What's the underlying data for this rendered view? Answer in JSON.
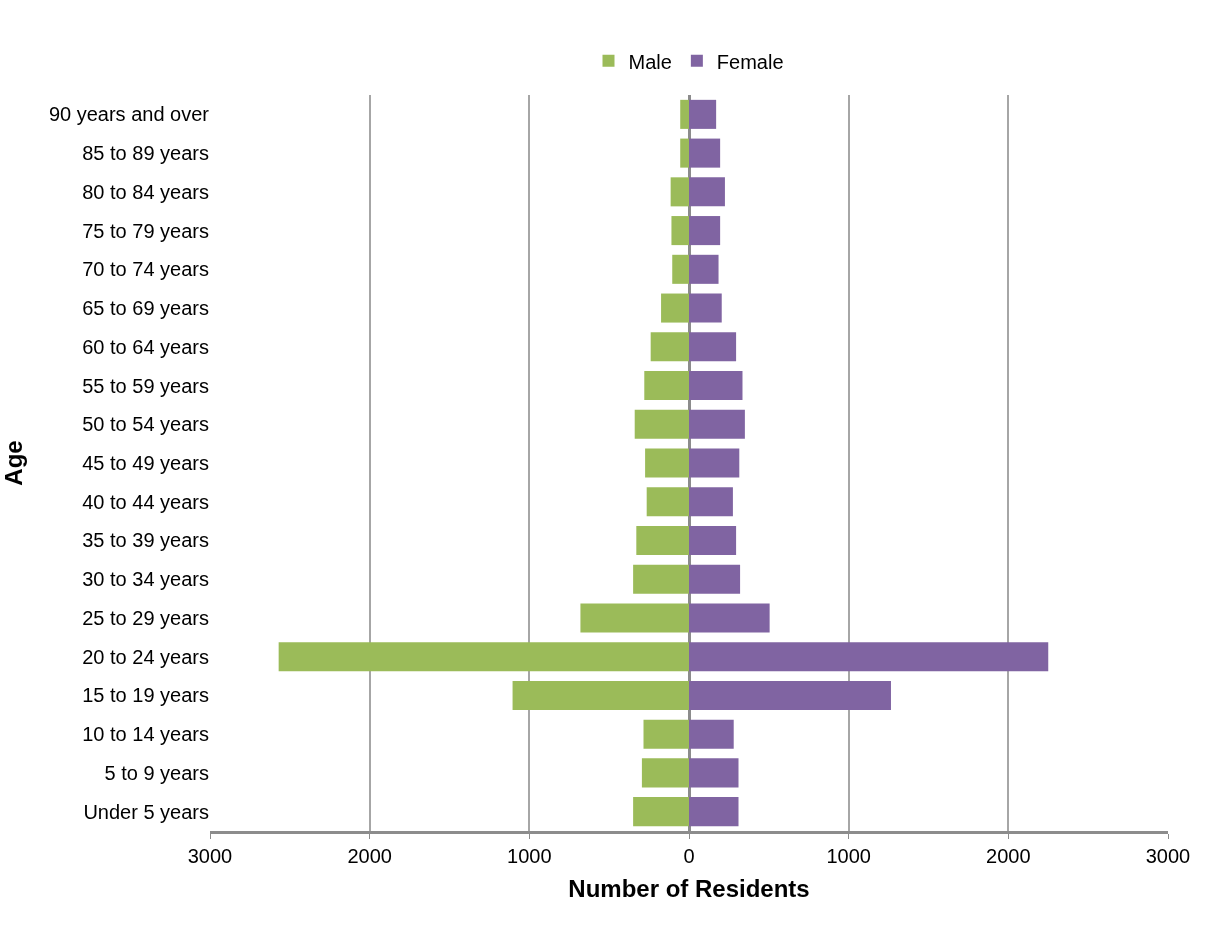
{
  "chart_data": {
    "type": "bar",
    "orientation": "horizontal",
    "stacked": true,
    "xlabel": "Number of Residents",
    "ylabel": "Age",
    "categories": [
      "90 years and over",
      "85 to 89 years",
      "80 to 84 years",
      "75 to 79 years",
      "70 to 74 years",
      "65 to 69 years",
      "60 to 64 years",
      "55 to 59 years",
      "50 to 54 years",
      "45 to 49 years",
      "40 to 44 years",
      "35 to 39 years",
      "30 to 34 years",
      "25 to 29 years",
      "20 to 24 years",
      "15 to 19 years",
      "10 to 14 years",
      "5 to 9 years",
      "Under 5 years"
    ],
    "series": [
      {
        "name": "Male",
        "color": "#9bbb59",
        "values": [
          -55,
          -55,
          -115,
          -110,
          -105,
          -175,
          -240,
          -280,
          -340,
          -275,
          -265,
          -330,
          -350,
          -680,
          -2570,
          -1105,
          -285,
          -295,
          -350
        ]
      },
      {
        "name": "Female",
        "color": "#8064a2",
        "values": [
          170,
          195,
          225,
          195,
          185,
          205,
          295,
          335,
          350,
          315,
          275,
          295,
          320,
          505,
          2250,
          1265,
          280,
          310,
          310
        ]
      }
    ],
    "xlim": [
      -3000,
      3000
    ],
    "xticks": [
      {
        "value": -3000,
        "label": "3000"
      },
      {
        "value": -2000,
        "label": "2000"
      },
      {
        "value": -1000,
        "label": "1000"
      },
      0,
      1000,
      2000,
      3000
    ],
    "grid": "x",
    "legend": "top"
  }
}
